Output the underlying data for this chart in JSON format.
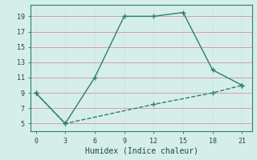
{
  "line1_x": [
    0,
    3,
    6,
    9,
    12,
    15,
    18,
    21
  ],
  "line1_y": [
    9,
    5,
    11,
    19,
    19,
    19.5,
    12,
    10
  ],
  "line2_x": [
    0,
    3,
    12,
    18,
    21
  ],
  "line2_y": [
    9,
    5,
    7.5,
    9,
    10
  ],
  "color": "#2e7d72",
  "bg_color": "#d6eeea",
  "grid_color_h": "#d4a0a0",
  "grid_color_v": "#c8e8e4",
  "xlim": [
    -0.5,
    22
  ],
  "ylim": [
    4,
    20.5
  ],
  "xticks": [
    0,
    3,
    6,
    9,
    12,
    15,
    18,
    21
  ],
  "yticks": [
    5,
    7,
    9,
    11,
    13,
    15,
    17,
    19
  ],
  "xlabel": "Humidex (Indice chaleur)",
  "marker": "+",
  "markersize": 4,
  "linewidth": 1.0,
  "line2_dash": "--"
}
